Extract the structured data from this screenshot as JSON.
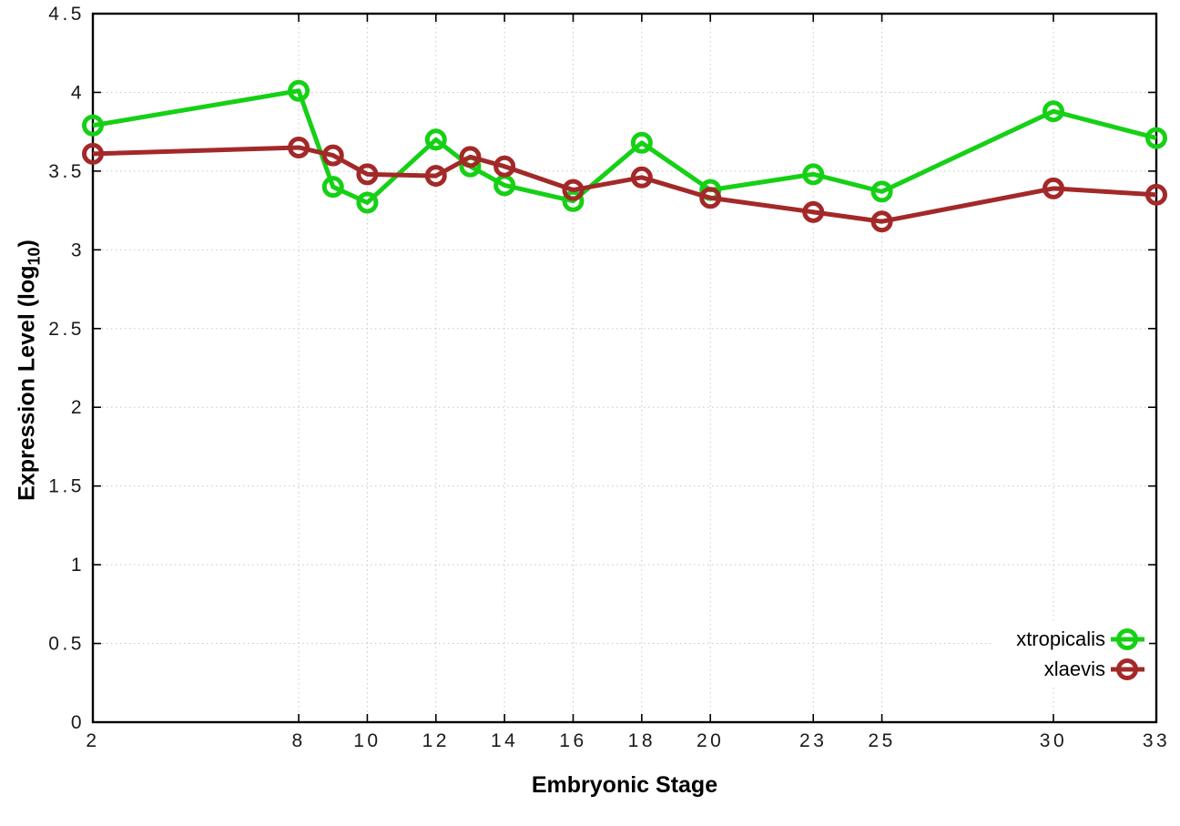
{
  "figure": {
    "background": "#ffffff",
    "xlabel": "Embryonic Stage",
    "ylabel_main": "Expression Level (log",
    "ylabel_sub": "10",
    "ylabel_end": ")"
  },
  "chart_data": {
    "type": "line",
    "title": "",
    "xlabel": "Embryonic Stage",
    "ylabel": "Expression Level (log10)",
    "xlim": [
      2,
      33
    ],
    "ylim": [
      0,
      4.5
    ],
    "x_ticks": [
      2,
      8,
      10,
      12,
      14,
      16,
      18,
      20,
      23,
      25,
      30,
      33
    ],
    "y_ticks": [
      0,
      0.5,
      1,
      1.5,
      2,
      2.5,
      3,
      3.5,
      4,
      4.5
    ],
    "grid": true,
    "grid_color": "#c8c8c8",
    "border_color": "#000000",
    "tick_label_color": "#1a1a1a",
    "legend_position": "bottom-right",
    "marker": "open-circle",
    "x": [
      2,
      8,
      9,
      10,
      12,
      13,
      14,
      16,
      18,
      20,
      23,
      25,
      30,
      33
    ],
    "series": [
      {
        "name": "xtropicalis",
        "color": "#16d016",
        "values": [
          3.79,
          4.01,
          3.4,
          3.3,
          3.7,
          3.53,
          3.41,
          3.31,
          3.68,
          3.38,
          3.48,
          3.37,
          3.88,
          3.71
        ]
      },
      {
        "name": "xlaevis",
        "color": "#a32929",
        "values": [
          3.61,
          3.65,
          3.6,
          3.48,
          3.47,
          3.59,
          3.53,
          3.38,
          3.46,
          3.33,
          3.24,
          3.18,
          3.39,
          3.35
        ]
      }
    ]
  }
}
